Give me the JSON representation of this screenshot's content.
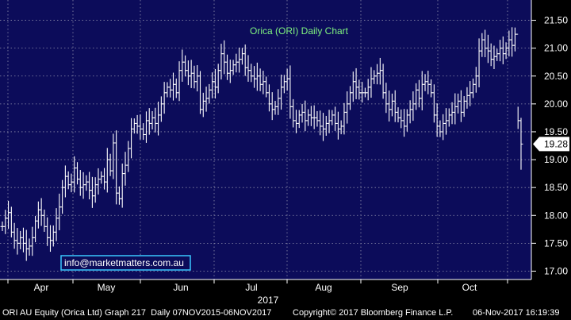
{
  "chart_data": {
    "type": "ohlc",
    "title": "Orica (ORI) Daily Chart",
    "watermark": "info@marketmatters.com.au",
    "last_price_label": "19.28",
    "last_price": 19.28,
    "year_label": "2017",
    "x_months": [
      "Apr",
      "May",
      "Jun",
      "Jul",
      "Aug",
      "Sep",
      "Oct"
    ],
    "y_ticks": [
      "21.50",
      "21.00",
      "20.50",
      "20.00",
      "19.50",
      "19.00",
      "18.50",
      "18.00",
      "17.50",
      "17.00"
    ],
    "ylim": [
      16.85,
      21.75
    ],
    "grid": true,
    "axis_side": "right",
    "colors": {
      "background": "#0c0c5a",
      "bars": "#ffffff",
      "grid": "#8d8daa",
      "title": "#7ff27f",
      "watermark_border": "#39c8ff"
    },
    "closes": [
      17.8,
      17.95,
      18.05,
      17.7,
      17.55,
      17.5,
      17.6,
      17.5,
      17.4,
      17.45,
      17.6,
      17.9,
      18.1,
      18.0,
      17.8,
      17.6,
      17.55,
      17.7,
      17.95,
      18.15,
      18.5,
      18.7,
      18.55,
      18.6,
      18.85,
      18.65,
      18.5,
      18.55,
      18.6,
      18.45,
      18.35,
      18.55,
      18.65,
      18.7,
      18.6,
      19.0,
      18.8,
      19.3,
      18.4,
      18.3,
      18.75,
      18.9,
      19.2,
      19.55,
      19.65,
      19.6,
      19.55,
      19.45,
      19.7,
      19.65,
      19.75,
      19.65,
      19.8,
      20.0,
      20.2,
      20.3,
      20.25,
      20.35,
      20.2,
      20.6,
      20.75,
      20.6,
      20.5,
      20.55,
      20.4,
      20.5,
      19.9,
      20.05,
      20.1,
      20.25,
      20.4,
      20.3,
      20.6,
      20.9,
      20.75,
      20.55,
      20.6,
      20.7,
      20.75,
      20.8,
      20.9,
      20.65,
      20.6,
      20.5,
      20.45,
      20.5,
      20.35,
      20.4,
      20.2,
      20.0,
      19.9,
      19.95,
      20.1,
      20.3,
      20.4,
      20.45,
      19.95,
      19.7,
      19.65,
      19.8,
      19.85,
      19.7,
      19.8,
      19.75,
      19.75,
      19.7,
      19.6,
      19.55,
      19.65,
      19.7,
      19.8,
      19.65,
      19.55,
      19.6,
      19.85,
      20.0,
      20.2,
      20.4,
      20.3,
      20.2,
      20.2,
      20.2,
      20.3,
      20.45,
      20.5,
      20.55,
      20.6,
      20.2,
      20.0,
      19.9,
      20.05,
      19.85,
      19.75,
      19.7,
      19.6,
      19.8,
      19.9,
      20.0,
      20.25,
      20.1,
      20.35,
      20.4,
      20.35,
      20.2,
      19.8,
      19.6,
      19.5,
      19.65,
      19.7,
      19.8,
      19.85,
      19.95,
      20.05,
      19.85,
      20.05,
      20.15,
      20.2,
      20.35,
      20.5,
      20.95,
      21.15,
      21.0,
      20.95,
      20.8,
      20.85,
      20.9,
      21.0,
      20.9,
      21.0,
      21.15,
      21.05,
      21.25,
      19.7,
      19.28
    ]
  }
}
